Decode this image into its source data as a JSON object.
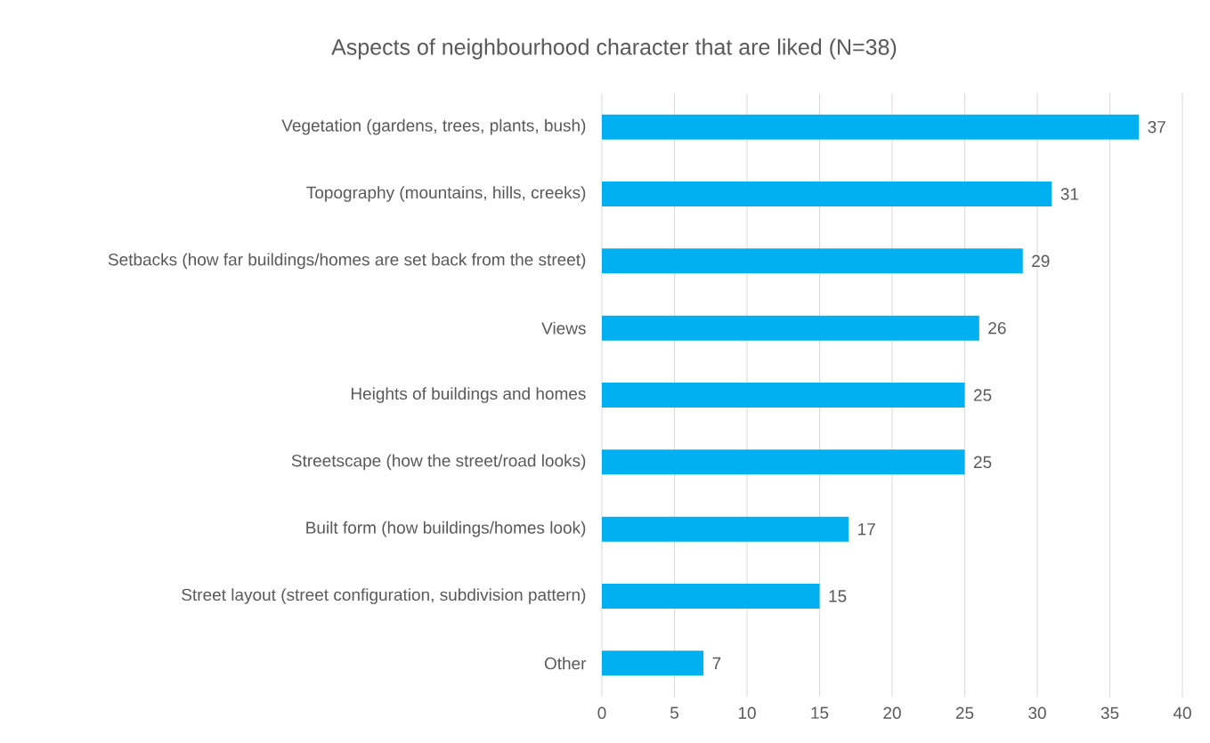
{
  "chart_data": {
    "type": "bar",
    "orientation": "horizontal",
    "title": "Aspects of neighbourhood character that are liked (N=38)",
    "categories": [
      "Vegetation (gardens, trees, plants, bush)",
      "Topography (mountains, hills, creeks)",
      "Setbacks (how far buildings/homes are set back from the street)",
      "Views",
      "Heights of buildings and homes",
      "Streetscape (how the street/road looks)",
      "Built form (how buildings/homes look)",
      "Street layout (street configuration, subdivision pattern)",
      "Other"
    ],
    "values": [
      37,
      31,
      29,
      26,
      25,
      25,
      17,
      15,
      7
    ],
    "color": "#00b0f0",
    "xlim": [
      0,
      40
    ],
    "xticks": [
      0,
      5,
      10,
      15,
      20,
      25,
      30,
      35,
      40
    ],
    "grid": "x",
    "data_labels": true
  }
}
